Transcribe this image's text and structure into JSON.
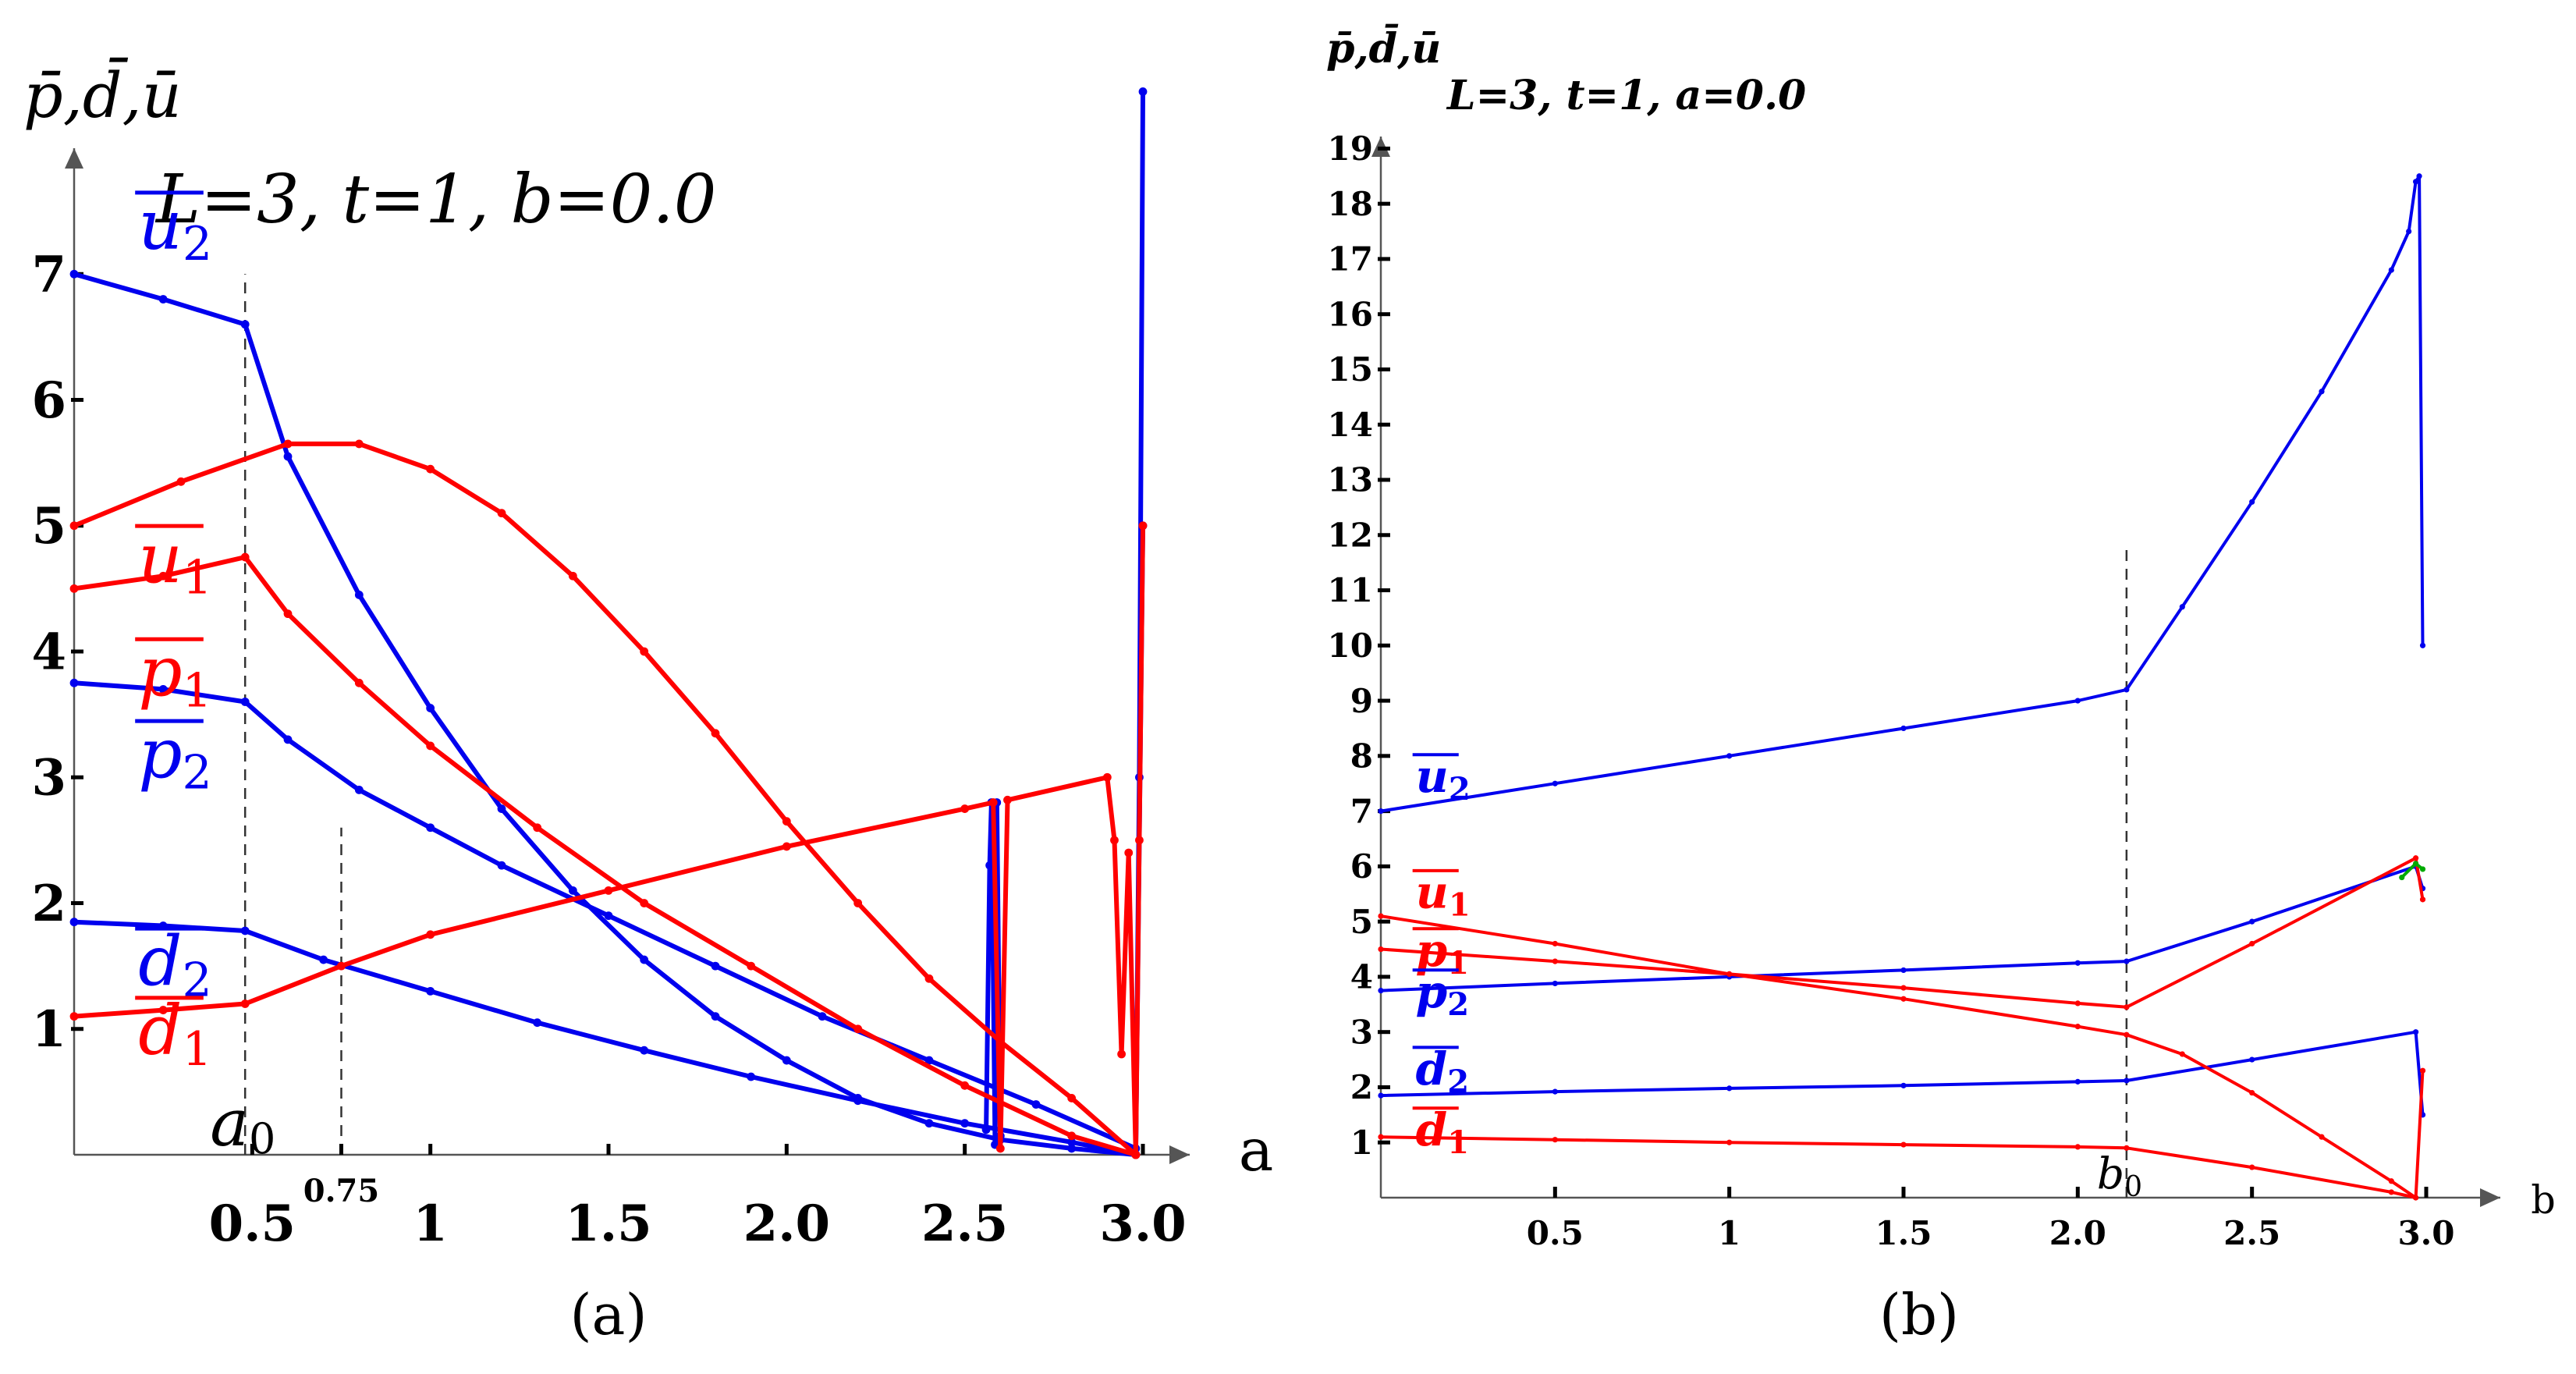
{
  "chart_data": [
    {
      "type": "line",
      "caption": "(a)",
      "title": "L=3, t=1, b=0.0",
      "ylabel": "p̄,d̄,ū",
      "xlabel": "a",
      "xlim": [
        0,
        3.0
      ],
      "ylim": [
        0,
        8
      ],
      "x_ticks": [
        {
          "v": 0.5,
          "label": "0.5"
        },
        {
          "v": 0.75,
          "label": "0.75"
        },
        {
          "v": 1.0,
          "label": "1"
        },
        {
          "v": 1.5,
          "label": "1.5"
        },
        {
          "v": 2.0,
          "label": "2.0"
        },
        {
          "v": 2.5,
          "label": "2.5"
        },
        {
          "v": 3.0,
          "label": "3.0"
        }
      ],
      "y_ticks": [
        {
          "v": 1,
          "label": "1"
        },
        {
          "v": 2,
          "label": "2"
        },
        {
          "v": 3,
          "label": "3"
        },
        {
          "v": 4,
          "label": "4"
        },
        {
          "v": 5,
          "label": "5"
        },
        {
          "v": 6,
          "label": "6"
        },
        {
          "v": 7,
          "label": "7"
        }
      ],
      "vlines": [
        {
          "x": 0.48,
          "y_top": 7.0,
          "label": "a0"
        },
        {
          "x": 0.75,
          "y_top": 2.6,
          "label": ""
        }
      ],
      "series": [
        {
          "name": "u2",
          "color": "#0000ee",
          "x": [
            0,
            0.25,
            0.48,
            0.6,
            0.8,
            1.0,
            1.2,
            1.4,
            1.6,
            1.8,
            2.0,
            2.2,
            2.4,
            2.6,
            2.8,
            2.98,
            2.99,
            3.0
          ],
          "y": [
            7.0,
            6.8,
            6.6,
            5.55,
            4.45,
            3.55,
            2.75,
            2.1,
            1.55,
            1.1,
            0.75,
            0.45,
            0.25,
            0.12,
            0.05,
            0.0,
            3.0,
            8.45
          ]
        },
        {
          "name": "p2",
          "color": "#0000ee",
          "x": [
            0,
            0.25,
            0.48,
            0.6,
            0.8,
            1.0,
            1.2,
            1.5,
            1.8,
            2.1,
            2.4,
            2.7,
            2.98,
            3.0
          ],
          "y": [
            3.75,
            3.7,
            3.6,
            3.3,
            2.9,
            2.6,
            2.3,
            1.9,
            1.5,
            1.1,
            0.75,
            0.4,
            0.05,
            5.0
          ]
        },
        {
          "name": "d2",
          "color": "#0000ee",
          "x": [
            0,
            0.25,
            0.48,
            0.7,
            1.0,
            1.3,
            1.6,
            1.9,
            2.2,
            2.5,
            2.8,
            2.98
          ],
          "y": [
            1.85,
            1.82,
            1.78,
            1.55,
            1.3,
            1.05,
            0.83,
            0.62,
            0.43,
            0.25,
            0.1,
            0.0
          ]
        },
        {
          "name": "blue spike at 2.58",
          "color": "#0000ee",
          "x": [
            2.56,
            2.57,
            2.575,
            2.585,
            2.59,
            2.6
          ],
          "y": [
            0.2,
            2.3,
            2.8,
            0.08,
            2.8,
            0.15
          ]
        },
        {
          "name": "u1",
          "color": "#ff0000",
          "x": [
            0,
            0.3,
            0.6,
            0.8,
            1.0,
            1.2,
            1.4,
            1.6,
            1.8,
            2.0,
            2.2,
            2.4,
            2.6,
            2.8,
            2.98
          ],
          "y": [
            5.0,
            5.35,
            5.65,
            5.65,
            5.45,
            5.1,
            4.6,
            4.0,
            3.35,
            2.65,
            2.0,
            1.4,
            0.9,
            0.45,
            0.0
          ]
        },
        {
          "name": "p1",
          "color": "#ff0000",
          "x": [
            0,
            0.25,
            0.48,
            0.6,
            0.8,
            1.0,
            1.3,
            1.6,
            1.9,
            2.2,
            2.5,
            2.8,
            2.98
          ],
          "y": [
            4.5,
            4.6,
            4.75,
            4.3,
            3.75,
            3.25,
            2.6,
            2.0,
            1.5,
            1.0,
            0.55,
            0.15,
            0.0
          ]
        },
        {
          "name": "d1",
          "color": "#ff0000",
          "x": [
            0,
            0.25,
            0.48,
            0.75,
            1.0,
            1.5,
            2.0,
            2.5,
            2.58,
            2.6,
            2.62,
            2.9,
            2.92,
            2.94,
            2.96,
            2.98
          ],
          "y": [
            1.1,
            1.15,
            1.2,
            1.5,
            1.75,
            2.1,
            2.45,
            2.75,
            2.8,
            0.05,
            2.82,
            3.0,
            2.5,
            0.8,
            2.4,
            0.0
          ]
        },
        {
          "name": "red spike at 3.0",
          "color": "#ff0000",
          "x": [
            2.98,
            2.99,
            3.0
          ],
          "y": [
            0.0,
            2.5,
            5.0
          ]
        }
      ],
      "series_labels": [
        {
          "series": "u2",
          "base": "u",
          "sub": "2",
          "x": 0.18,
          "y": 7.2,
          "color": "#0000ee"
        },
        {
          "series": "u1",
          "base": "u",
          "sub": "1",
          "x": 0.18,
          "y": 4.55,
          "color": "#ff0000"
        },
        {
          "series": "p1",
          "base": "p",
          "sub": "1",
          "x": 0.18,
          "y": 3.65,
          "color": "#ff0000"
        },
        {
          "series": "p2",
          "base": "p",
          "sub": "2",
          "x": 0.18,
          "y": 3.0,
          "color": "#0000ee"
        },
        {
          "series": "d2",
          "base": "d",
          "sub": "2",
          "x": 0.18,
          "y": 1.35,
          "color": "#0000ee"
        },
        {
          "series": "d1",
          "base": "d",
          "sub": "1",
          "x": 0.18,
          "y": 0.8,
          "color": "#ff0000"
        }
      ]
    },
    {
      "type": "line",
      "caption": "(b)",
      "title": "L=3, t=1, a=0.0",
      "ylabel": "p̄,d̄,ū",
      "xlabel": "b",
      "xlim": [
        0,
        3.0
      ],
      "ylim": [
        0,
        19.5
      ],
      "x_ticks": [
        {
          "v": 0.5,
          "label": "0.5"
        },
        {
          "v": 1.0,
          "label": "1"
        },
        {
          "v": 1.5,
          "label": "1.5"
        },
        {
          "v": 2.0,
          "label": "2.0"
        },
        {
          "v": 2.5,
          "label": "2.5"
        },
        {
          "v": 3.0,
          "label": "3.0"
        }
      ],
      "y_ticks": [
        {
          "v": 1,
          "label": "1"
        },
        {
          "v": 2,
          "label": "2"
        },
        {
          "v": 3,
          "label": "3"
        },
        {
          "v": 4,
          "label": "4"
        },
        {
          "v": 5,
          "label": "5"
        },
        {
          "v": 6,
          "label": "6"
        },
        {
          "v": 7,
          "label": "7"
        },
        {
          "v": 8,
          "label": "8"
        },
        {
          "v": 9,
          "label": "9"
        },
        {
          "v": 10,
          "label": "10"
        },
        {
          "v": 11,
          "label": "11"
        },
        {
          "v": 12,
          "label": "12"
        },
        {
          "v": 13,
          "label": "13"
        },
        {
          "v": 14,
          "label": "14"
        },
        {
          "v": 15,
          "label": "15"
        },
        {
          "v": 16,
          "label": "16"
        },
        {
          "v": 17,
          "label": "17"
        },
        {
          "v": 18,
          "label": "18"
        },
        {
          "v": 19,
          "label": "19"
        }
      ],
      "vlines": [
        {
          "x": 2.14,
          "y_top": 11.8,
          "label": "b0"
        }
      ],
      "series": [
        {
          "name": "u2",
          "color": "#0000ee",
          "x": [
            0,
            0.5,
            1.0,
            1.5,
            2.0,
            2.14,
            2.3,
            2.5,
            2.7,
            2.9,
            2.95,
            2.97,
            2.98,
            2.99
          ],
          "y": [
            7.0,
            7.5,
            8.0,
            8.5,
            9.0,
            9.2,
            10.7,
            12.6,
            14.6,
            16.8,
            17.5,
            18.4,
            18.5,
            10.0
          ]
        },
        {
          "name": "p2",
          "color": "#0000ee",
          "x": [
            0,
            0.5,
            1.0,
            1.5,
            2.0,
            2.14,
            2.5,
            2.97,
            2.99
          ],
          "y": [
            3.75,
            3.88,
            4.0,
            4.12,
            4.25,
            4.28,
            5.0,
            6.0,
            5.6
          ]
        },
        {
          "name": "d2",
          "color": "#0000ee",
          "x": [
            0,
            0.5,
            1.0,
            1.5,
            2.0,
            2.14,
            2.5,
            2.97,
            2.99
          ],
          "y": [
            1.85,
            1.92,
            1.98,
            2.03,
            2.1,
            2.12,
            2.5,
            3.0,
            1.5
          ]
        },
        {
          "name": "u1",
          "color": "#ff0000",
          "x": [
            0,
            0.5,
            1.0,
            1.5,
            2.0,
            2.14,
            2.3,
            2.5,
            2.7,
            2.9,
            2.97
          ],
          "y": [
            5.1,
            4.6,
            4.05,
            3.6,
            3.1,
            2.95,
            2.6,
            1.9,
            1.1,
            0.3,
            0.0
          ]
        },
        {
          "name": "p1",
          "color": "#ff0000",
          "x": [
            0,
            0.5,
            1.0,
            1.5,
            2.0,
            2.14,
            2.5,
            2.97,
            2.99
          ],
          "y": [
            4.5,
            4.28,
            4.05,
            3.8,
            3.52,
            3.45,
            4.6,
            6.15,
            5.4
          ]
        },
        {
          "name": "d1",
          "color": "#ff0000",
          "x": [
            0,
            0.5,
            1.0,
            1.5,
            2.0,
            2.14,
            2.5,
            2.9,
            2.97,
            2.99
          ],
          "y": [
            1.1,
            1.05,
            1.0,
            0.96,
            0.92,
            0.9,
            0.55,
            0.1,
            0.0,
            2.3
          ]
        },
        {
          "name": "green segment",
          "color": "#00aa00",
          "x": [
            2.93,
            2.97,
            2.99
          ],
          "y": [
            5.8,
            6.05,
            5.95
          ]
        }
      ],
      "series_labels": [
        {
          "series": "u2",
          "base": "u",
          "sub": "2",
          "x": 0.1,
          "y": 7.35,
          "color": "#0000ee"
        },
        {
          "series": "u1",
          "base": "u",
          "sub": "1",
          "x": 0.1,
          "y": 5.25,
          "color": "#ff0000"
        },
        {
          "series": "p1",
          "base": "p",
          "sub": "1",
          "x": 0.1,
          "y": 4.2,
          "color": "#ff0000"
        },
        {
          "series": "p2",
          "base": "p",
          "sub": "2",
          "x": 0.1,
          "y": 3.45,
          "color": "#0000ee"
        },
        {
          "series": "d2",
          "base": "d",
          "sub": "2",
          "x": 0.1,
          "y": 2.05,
          "color": "#0000ee"
        },
        {
          "series": "d1",
          "base": "d",
          "sub": "1",
          "x": 0.1,
          "y": 0.95,
          "color": "#ff0000"
        }
      ]
    }
  ]
}
